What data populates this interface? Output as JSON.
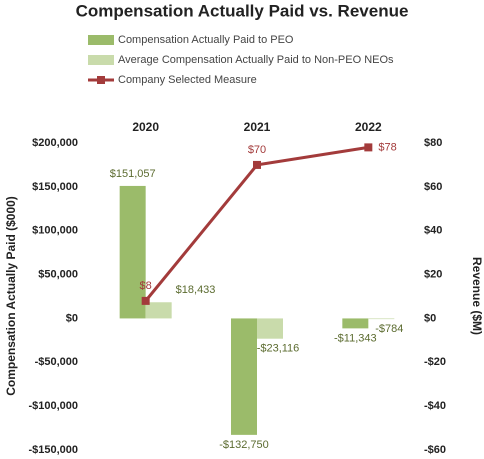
{
  "chart_data": {
    "type": "bar_line",
    "title": "Compensation Actually Paid vs. Revenue",
    "categories": [
      "2020",
      "2021",
      "2022"
    ],
    "ylabel": "Compensation Actually Paid ($000)",
    "y2label": "Revenue ($M)",
    "ylim": [
      -150000,
      200000
    ],
    "yticks": [
      {
        "value": -150000,
        "label": "-$150,000"
      },
      {
        "value": -100000,
        "label": "-$100,000"
      },
      {
        "value": -50000,
        "label": "-$50,000"
      },
      {
        "value": 0,
        "label": "$0"
      },
      {
        "value": 50000,
        "label": "$50,000"
      },
      {
        "value": 100000,
        "label": "$100,000"
      },
      {
        "value": 150000,
        "label": "$150,000"
      },
      {
        "value": 200000,
        "label": "$200,000"
      }
    ],
    "y2lim": [
      -60,
      80
    ],
    "y2ticks": [
      {
        "value": -60,
        "label": "-$60"
      },
      {
        "value": -40,
        "label": "-$40"
      },
      {
        "value": -20,
        "label": "-$20"
      },
      {
        "value": 0,
        "label": "$0"
      },
      {
        "value": 20,
        "label": "$20"
      },
      {
        "value": 40,
        "label": "$40"
      },
      {
        "value": 60,
        "label": "$60"
      },
      {
        "value": 80,
        "label": "$80"
      }
    ],
    "series": [
      {
        "name": "Compensation Actually Paid to PEO",
        "type": "bar",
        "color": "#9bbb6a",
        "values": [
          151057,
          -132750,
          -11343
        ],
        "value_labels": [
          "$151,057",
          "-$132,750",
          "-$11,343"
        ]
      },
      {
        "name": "Average Compensation Actually Paid to Non-PEO NEOs",
        "type": "bar",
        "color": "#c9dbab",
        "values": [
          18433,
          -23116,
          -784
        ],
        "value_labels": [
          "$18,433",
          "-$23,116",
          "-$784"
        ]
      },
      {
        "name": "Company Selected Measure",
        "type": "line",
        "axis": "y2",
        "color": "#a33b3b",
        "values": [
          8,
          70,
          78
        ],
        "value_labels": [
          "$8",
          "$70",
          "$78"
        ]
      }
    ]
  }
}
